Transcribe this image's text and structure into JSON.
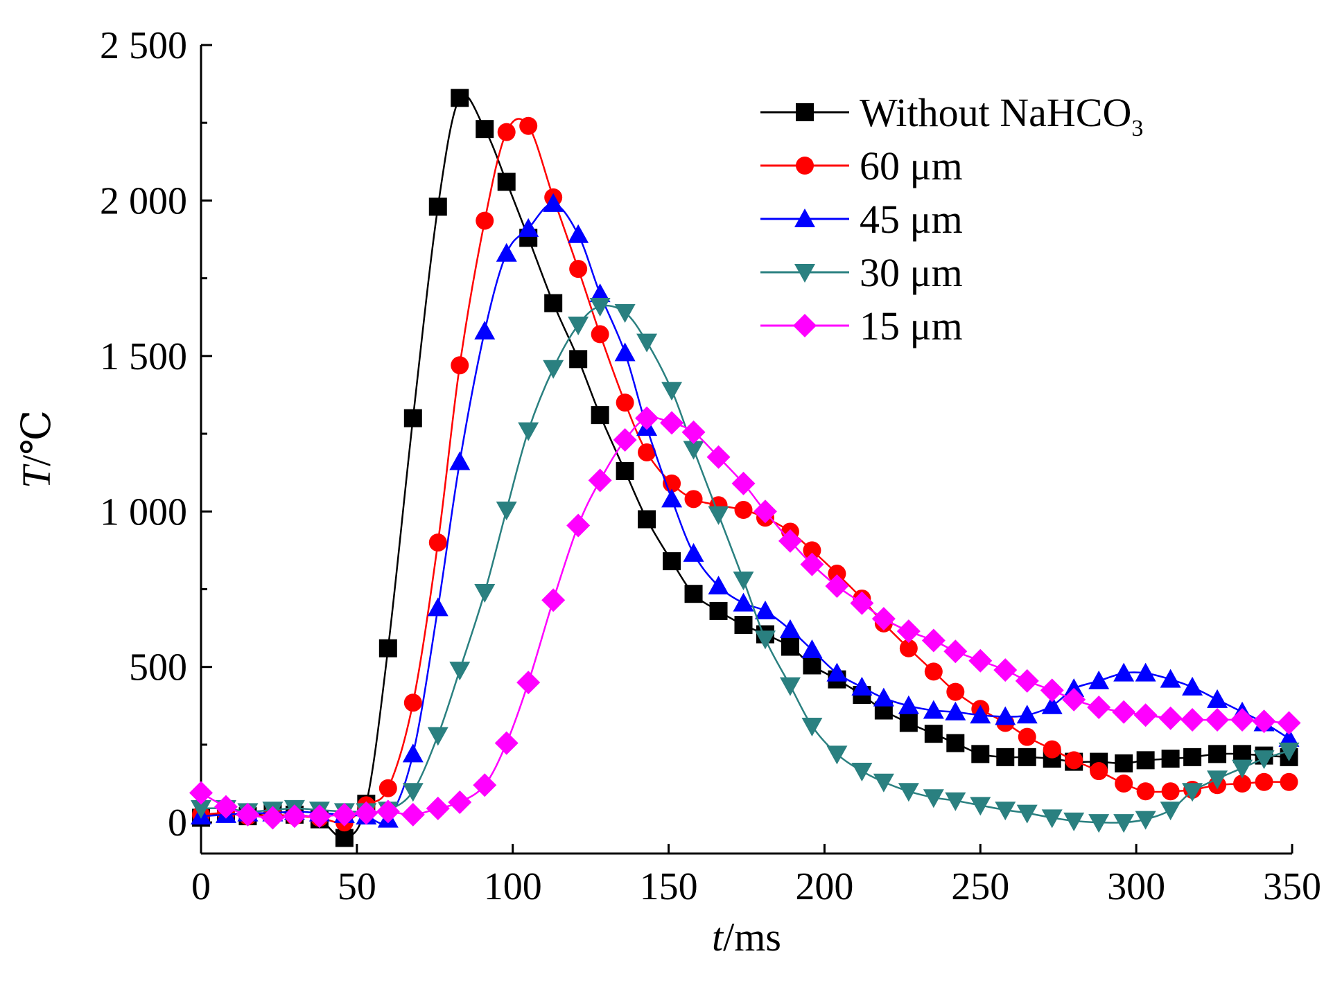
{
  "chart_data": {
    "type": "line",
    "xlabel_var": "t",
    "xlabel_unit": "/ms",
    "ylabel_var": "T",
    "ylabel_unit": "/℃",
    "xlim": [
      0,
      350
    ],
    "ylim": [
      -100,
      2500
    ],
    "x_ticks": [
      0,
      50,
      100,
      150,
      200,
      250,
      300,
      350
    ],
    "x_tick_labels": [
      "0",
      "50",
      "100",
      "150",
      "200",
      "250",
      "300",
      "350"
    ],
    "y_ticks": [
      0,
      500,
      1000,
      1500,
      2000,
      2500
    ],
    "y_tick_labels": [
      "0",
      "500",
      "1 000",
      "1 500",
      "2 000",
      "2 500"
    ],
    "grid": false,
    "legend_position": "top-right",
    "series": [
      {
        "name": "Without NaHCO",
        "name_sub": "3",
        "color": "#000000",
        "marker": "square",
        "x": [
          0,
          8,
          15,
          23,
          30,
          38,
          46,
          53,
          60,
          68,
          76,
          83,
          91,
          98,
          105,
          113,
          121,
          128,
          136,
          143,
          151,
          158,
          166,
          174,
          181,
          189,
          196,
          204,
          212,
          219,
          227,
          235,
          242,
          250,
          258,
          265,
          273,
          280,
          288,
          296,
          303,
          311,
          318,
          326,
          334,
          341,
          349
        ],
        "y": [
          15,
          30,
          20,
          35,
          25,
          10,
          -50,
          60,
          560,
          1300,
          1980,
          2330,
          2230,
          2060,
          1880,
          1670,
          1490,
          1310,
          1130,
          975,
          840,
          735,
          680,
          635,
          605,
          565,
          505,
          460,
          410,
          360,
          320,
          285,
          255,
          220,
          210,
          210,
          205,
          195,
          195,
          190,
          200,
          205,
          210,
          220,
          220,
          215,
          210
        ]
      },
      {
        "name": "60 μm",
        "color": "#ff0000",
        "marker": "circle",
        "x": [
          0,
          8,
          15,
          23,
          30,
          38,
          46,
          53,
          60,
          68,
          76,
          83,
          91,
          98,
          105,
          113,
          121,
          128,
          136,
          143,
          151,
          158,
          166,
          174,
          181,
          189,
          196,
          204,
          212,
          219,
          227,
          235,
          242,
          250,
          258,
          265,
          273,
          280,
          288,
          296,
          303,
          311,
          318,
          326,
          334,
          341,
          349
        ],
        "y": [
          25,
          30,
          20,
          25,
          20,
          15,
          0,
          55,
          110,
          385,
          900,
          1470,
          1935,
          2220,
          2240,
          2010,
          1780,
          1570,
          1350,
          1190,
          1090,
          1040,
          1020,
          1005,
          980,
          935,
          875,
          800,
          720,
          640,
          560,
          485,
          420,
          365,
          320,
          275,
          235,
          200,
          165,
          125,
          100,
          100,
          105,
          120,
          125,
          130,
          130
        ]
      },
      {
        "name": "45 μm",
        "color": "#0000ff",
        "marker": "triangle-up",
        "x": [
          0,
          8,
          15,
          23,
          30,
          38,
          46,
          53,
          60,
          68,
          76,
          83,
          91,
          98,
          105,
          113,
          121,
          128,
          136,
          143,
          151,
          158,
          166,
          174,
          181,
          189,
          196,
          204,
          212,
          219,
          227,
          235,
          242,
          250,
          258,
          265,
          273,
          280,
          288,
          296,
          303,
          311,
          318,
          326,
          334,
          341,
          349
        ],
        "y": [
          20,
          25,
          30,
          30,
          35,
          30,
          25,
          20,
          10,
          220,
          690,
          1160,
          1580,
          1830,
          1910,
          1990,
          1890,
          1700,
          1510,
          1270,
          1040,
          865,
          760,
          705,
          680,
          620,
          555,
          480,
          435,
          400,
          375,
          360,
          355,
          345,
          340,
          345,
          375,
          430,
          455,
          480,
          480,
          460,
          435,
          395,
          355,
          320,
          270
        ]
      },
      {
        "name": "30 μm",
        "color": "#2a8080",
        "marker": "triangle-down",
        "x": [
          0,
          8,
          15,
          23,
          30,
          38,
          46,
          53,
          60,
          68,
          76,
          83,
          91,
          98,
          105,
          113,
          121,
          128,
          136,
          143,
          151,
          158,
          166,
          174,
          181,
          189,
          196,
          204,
          212,
          219,
          227,
          235,
          242,
          250,
          258,
          265,
          273,
          280,
          288,
          296,
          303,
          311,
          318,
          326,
          334,
          341,
          349
        ],
        "y": [
          45,
          45,
          35,
          40,
          45,
          40,
          35,
          35,
          40,
          100,
          280,
          490,
          740,
          1005,
          1260,
          1460,
          1600,
          1660,
          1640,
          1545,
          1390,
          1200,
          990,
          780,
          590,
          440,
          310,
          220,
          165,
          130,
          100,
          80,
          70,
          55,
          40,
          30,
          15,
          5,
          0,
          0,
          10,
          40,
          100,
          140,
          175,
          205,
          230
        ]
      },
      {
        "name": "15 μm",
        "color": "#ff00ff",
        "marker": "diamond",
        "x": [
          0,
          8,
          15,
          23,
          30,
          38,
          46,
          53,
          60,
          68,
          76,
          83,
          91,
          98,
          105,
          113,
          121,
          128,
          136,
          143,
          151,
          158,
          166,
          174,
          181,
          189,
          196,
          204,
          212,
          219,
          227,
          235,
          242,
          250,
          258,
          265,
          273,
          280,
          288,
          296,
          303,
          311,
          318,
          326,
          334,
          341,
          349
        ],
        "y": [
          95,
          50,
          25,
          15,
          20,
          20,
          25,
          30,
          35,
          25,
          45,
          65,
          120,
          255,
          450,
          715,
          955,
          1100,
          1230,
          1300,
          1285,
          1255,
          1175,
          1090,
          1000,
          905,
          830,
          760,
          705,
          655,
          615,
          585,
          550,
          520,
          490,
          455,
          425,
          395,
          370,
          355,
          345,
          335,
          330,
          330,
          330,
          325,
          320
        ]
      }
    ]
  }
}
